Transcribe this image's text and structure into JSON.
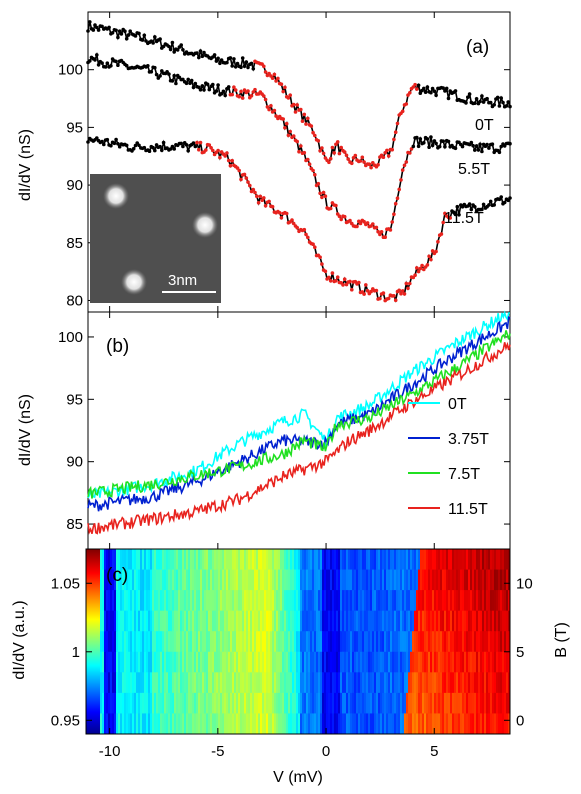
{
  "chart_data": [
    {
      "panel": "(a)",
      "type": "line",
      "ylabel": "dI/dV (nS)",
      "xlim": [
        -11,
        8.5
      ],
      "ylim": [
        79,
        105
      ],
      "yticks": [
        "80",
        "85",
        "90",
        "95",
        "100"
      ],
      "fit_color": "#e8231e",
      "series": [
        {
          "name": "0T",
          "x": [
            -11,
            -8,
            -5,
            -3.5,
            -2.5,
            -1.5,
            -0.5,
            0,
            0.5,
            1,
            1.5,
            2,
            2.5,
            3,
            3.5,
            4,
            5,
            6,
            7,
            8.5
          ],
          "y": [
            103.8,
            102.5,
            100.8,
            100.5,
            99.8,
            97,
            94.5,
            92,
            93.5,
            92,
            92.3,
            91.6,
            92,
            93,
            96.5,
            98.5,
            98.2,
            97.8,
            97.3,
            97.1
          ]
        },
        {
          "name": "5.5T",
          "x": [
            -11,
            -8,
            -6,
            -4,
            -3,
            -2,
            -1,
            0,
            1,
            2,
            2.5,
            3,
            3.5,
            4,
            5,
            6,
            7,
            8.5
          ],
          "y": [
            101,
            99.8,
            98.6,
            98,
            97.8,
            95.5,
            92.5,
            88.5,
            87,
            86.5,
            85.6,
            86.2,
            91.2,
            93.8,
            93.7,
            93.4,
            93.2,
            93.3
          ]
        },
        {
          "name": "11.5T",
          "x": [
            -11,
            -9,
            -7,
            -5.5,
            -4.5,
            -3,
            -2,
            -1,
            0,
            1,
            2,
            3,
            3.5,
            4,
            5,
            5.5,
            6,
            7,
            8.5
          ],
          "y": [
            94,
            93.3,
            93.4,
            93.2,
            92.3,
            88.6,
            87.5,
            86,
            82.3,
            81.5,
            80.8,
            80.2,
            80.5,
            82,
            84,
            87.3,
            87.8,
            88.2,
            88.8
          ]
        }
      ],
      "inset": {
        "scalebar_label": "3nm"
      }
    },
    {
      "panel": "(b)",
      "type": "line",
      "ylabel": "dI/dV (nS)",
      "xlim": [
        -11,
        8.5
      ],
      "ylim": [
        83,
        102
      ],
      "yticks": [
        "85",
        "90",
        "95",
        "100"
      ],
      "series": [
        {
          "name": "0T",
          "color": "#00ffff",
          "x": [
            -11,
            -8,
            -6,
            -4,
            -2,
            -1,
            0,
            0.5,
            2,
            4,
            6,
            8.5
          ],
          "y": [
            87.2,
            88.2,
            89.3,
            91.5,
            93.2,
            93.8,
            91.6,
            93.5,
            94.5,
            97.2,
            99.5,
            102
          ]
        },
        {
          "name": "3.75T",
          "color": "#0020d0",
          "x": [
            -11,
            -8,
            -6,
            -4,
            -2,
            0,
            0.5,
            2,
            4,
            6,
            8.5
          ],
          "y": [
            86.4,
            87.2,
            88.4,
            90,
            91.7,
            91.5,
            93,
            93.8,
            96.2,
            98.6,
            101.2
          ]
        },
        {
          "name": "7.5T",
          "color": "#20e020",
          "x": [
            -11,
            -8,
            -6,
            -4,
            -2,
            -1,
            0,
            0.5,
            2,
            4,
            6,
            8.5
          ],
          "y": [
            87.4,
            88.2,
            88.9,
            89.6,
            90.6,
            91.7,
            91,
            93,
            93.5,
            95.4,
            97.5,
            100.3
          ]
        },
        {
          "name": "11.5T",
          "color": "#e8231e",
          "x": [
            -11,
            -8,
            -6,
            -4,
            -2,
            0,
            1,
            2,
            4,
            6,
            8.5
          ],
          "y": [
            84.6,
            85.4,
            86,
            87,
            88.8,
            90,
            91.6,
            92.5,
            94.8,
            96.8,
            99.4
          ]
        }
      ]
    },
    {
      "panel": "(c)",
      "type": "heatmap",
      "xlabel": "V (mV)",
      "ylabel_left": "dI/dV (a.u.)",
      "ylabel_right": "B (T)",
      "xlim": [
        -11,
        8.5
      ],
      "xticks": [
        "-10",
        "-5",
        "0",
        "5"
      ],
      "colorbar_ticks": [
        "0.95",
        "1",
        "1.05"
      ],
      "ylim_right": [
        -1,
        12.5
      ],
      "yticks_right": [
        "0",
        "5",
        "10"
      ],
      "field_rows_T": [
        0,
        1.5,
        3,
        4.5,
        6,
        7.5,
        9,
        10.5,
        11.5
      ]
    }
  ]
}
